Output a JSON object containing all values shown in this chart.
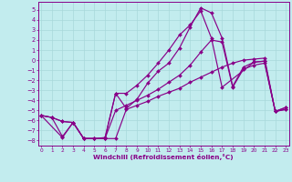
{
  "xlabel": "Windchill (Refroidissement éolien,°C)",
  "bg_color": "#c2ecee",
  "grid_color": "#a8d8da",
  "line_color": "#880088",
  "xlim": [
    -0.3,
    23.3
  ],
  "ylim": [
    -8.5,
    5.8
  ],
  "xticks": [
    0,
    1,
    2,
    3,
    4,
    5,
    6,
    7,
    8,
    9,
    10,
    11,
    12,
    13,
    14,
    15,
    16,
    17,
    18,
    19,
    20,
    21,
    22,
    23
  ],
  "yticks": [
    5,
    4,
    3,
    2,
    1,
    0,
    -1,
    -2,
    -3,
    -4,
    -5,
    -6,
    -7,
    -8
  ],
  "s1_x": [
    0,
    1,
    2,
    3,
    4,
    5,
    6,
    7,
    8,
    9,
    10,
    11,
    12,
    13,
    14,
    15,
    16,
    17,
    18,
    19,
    20,
    21,
    22,
    23
  ],
  "s1_y": [
    -5.5,
    -5.7,
    -6.1,
    -6.2,
    -7.8,
    -7.8,
    -7.8,
    -7.8,
    -4.9,
    -4.5,
    -4.1,
    -3.6,
    -3.2,
    -2.8,
    -2.2,
    -1.7,
    -1.2,
    -0.7,
    -0.3,
    0.0,
    0.1,
    0.2,
    -5.1,
    -4.9
  ],
  "s2_x": [
    0,
    1,
    2,
    3,
    4,
    5,
    6,
    7,
    8,
    9,
    10,
    11,
    12,
    13,
    14,
    15,
    16,
    17,
    18,
    19,
    20,
    21,
    22,
    23
  ],
  "s2_y": [
    -5.5,
    -5.7,
    -6.1,
    -6.2,
    -7.8,
    -7.8,
    -7.8,
    -5.0,
    -4.5,
    -4.0,
    -3.5,
    -2.9,
    -2.2,
    -1.5,
    -0.5,
    0.8,
    2.0,
    1.8,
    -2.7,
    -0.9,
    -0.5,
    -0.3,
    -5.1,
    -4.9
  ],
  "s3_x": [
    0,
    1,
    2,
    3,
    4,
    5,
    6,
    7,
    8,
    9,
    10,
    11,
    12,
    13,
    14,
    15,
    16,
    17,
    18,
    19,
    20,
    21,
    22,
    23
  ],
  "s3_y": [
    -5.5,
    -5.7,
    -7.6,
    -6.2,
    -7.8,
    -7.8,
    -7.8,
    -3.3,
    -4.8,
    -3.9,
    -2.3,
    -1.1,
    -0.3,
    1.2,
    3.3,
    5.2,
    4.7,
    2.2,
    -2.6,
    -0.7,
    -0.2,
    -0.1,
    -5.1,
    -4.7
  ],
  "s4_x": [
    0,
    2,
    3,
    4,
    5,
    6,
    7,
    8,
    9,
    10,
    11,
    12,
    13,
    14,
    15,
    16,
    17,
    20,
    21,
    22,
    23
  ],
  "s4_y": [
    -5.5,
    -7.7,
    -6.2,
    -7.8,
    -7.8,
    -7.7,
    -3.3,
    -3.3,
    -2.5,
    -1.5,
    -0.3,
    1.0,
    2.5,
    3.5,
    4.9,
    2.2,
    -2.7,
    -0.2,
    -0.1,
    -5.1,
    -4.7
  ]
}
